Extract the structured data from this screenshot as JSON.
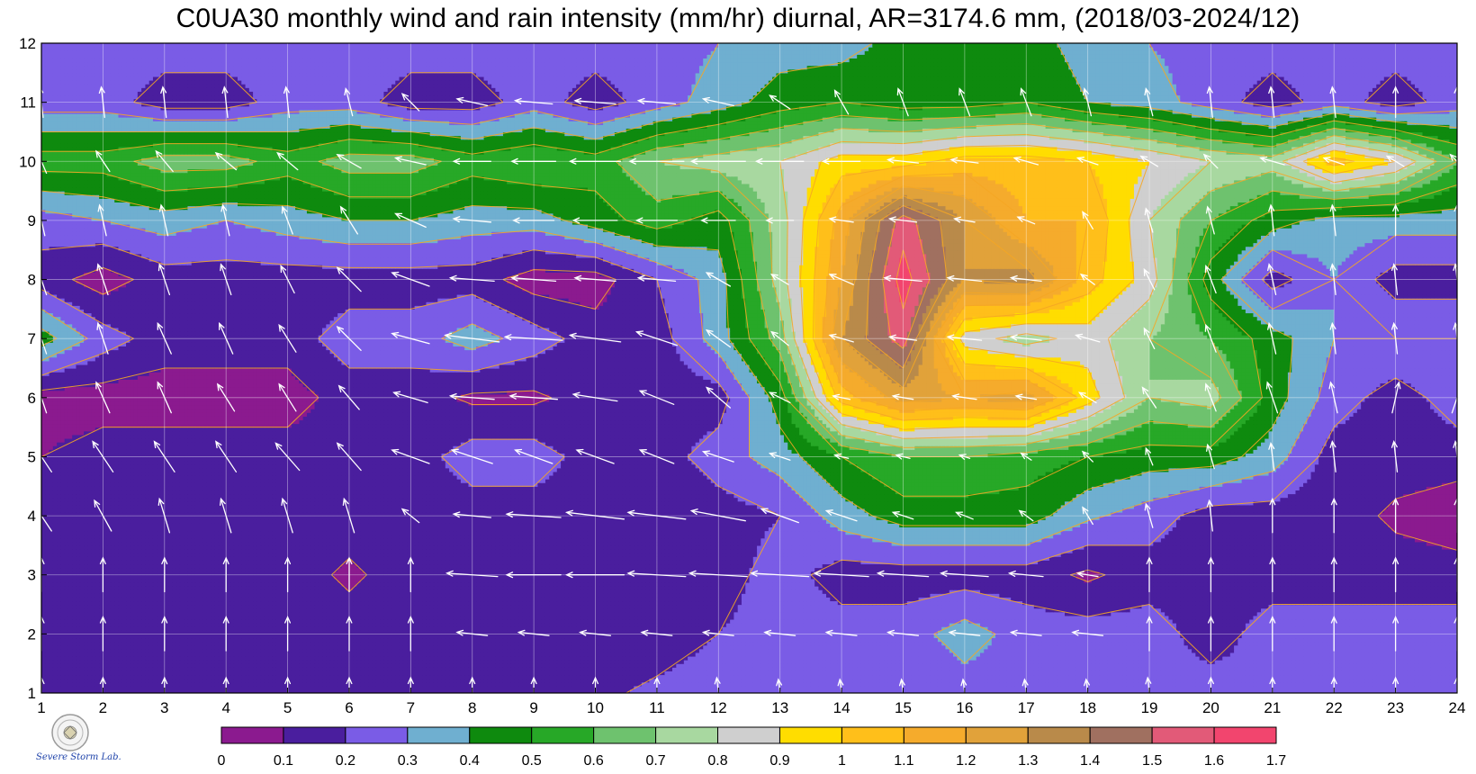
{
  "chart_data": {
    "type": "heatmap",
    "title": "C0UA30 monthly wind and rain intensity (mm/hr) diurnal, AR=3174.6 mm, (2018/03-2024/12)",
    "xlabel": "",
    "ylabel": "",
    "xlim": [
      1,
      24
    ],
    "ylim": [
      1,
      12
    ],
    "x_ticks": [
      1,
      2,
      3,
      4,
      5,
      6,
      7,
      8,
      9,
      10,
      11,
      12,
      13,
      14,
      15,
      16,
      17,
      18,
      19,
      20,
      21,
      22,
      23,
      24
    ],
    "y_ticks": [
      1,
      2,
      3,
      4,
      5,
      6,
      7,
      8,
      9,
      10,
      11,
      12
    ],
    "grid": true,
    "hours": [
      1,
      2,
      3,
      4,
      5,
      6,
      7,
      8,
      9,
      10,
      11,
      12,
      13,
      14,
      15,
      16,
      17,
      18,
      19,
      20,
      21,
      22,
      23,
      24
    ],
    "months": [
      1,
      2,
      3,
      4,
      5,
      6,
      7,
      8,
      9,
      10,
      11,
      12
    ],
    "rain_intensity": [
      [
        0.15,
        0.15,
        0.15,
        0.15,
        0.15,
        0.15,
        0.15,
        0.15,
        0.15,
        0.18,
        0.22,
        0.25,
        0.25,
        0.25,
        0.22,
        0.25,
        0.25,
        0.25,
        0.25,
        0.25,
        0.22,
        0.25,
        0.25,
        0.25
      ],
      [
        0.15,
        0.15,
        0.15,
        0.15,
        0.15,
        0.15,
        0.15,
        0.15,
        0.15,
        0.15,
        0.15,
        0.2,
        0.25,
        0.25,
        0.25,
        0.35,
        0.25,
        0.25,
        0.25,
        0.15,
        0.25,
        0.25,
        0.25,
        0.25
      ],
      [
        0.12,
        0.15,
        0.15,
        0.15,
        0.15,
        0.08,
        0.15,
        0.15,
        0.15,
        0.15,
        0.15,
        0.15,
        0.25,
        0.15,
        0.15,
        0.15,
        0.15,
        0.08,
        0.15,
        0.15,
        0.15,
        0.15,
        0.15,
        0.15
      ],
      [
        0.15,
        0.15,
        0.15,
        0.15,
        0.15,
        0.15,
        0.15,
        0.15,
        0.15,
        0.15,
        0.12,
        0.15,
        0.2,
        0.35,
        0.45,
        0.45,
        0.45,
        0.32,
        0.25,
        0.15,
        0.15,
        0.15,
        0.08,
        0.03
      ],
      [
        0.1,
        0.15,
        0.15,
        0.15,
        0.15,
        0.15,
        0.15,
        0.25,
        0.25,
        0.15,
        0.15,
        0.25,
        0.35,
        0.5,
        0.6,
        0.6,
        0.55,
        0.5,
        0.45,
        0.45,
        0.35,
        0.15,
        0.15,
        0.15
      ],
      [
        0.05,
        0.05,
        0.05,
        0.05,
        0.05,
        0.15,
        0.15,
        0.08,
        0.08,
        0.15,
        0.15,
        0.15,
        0.45,
        1.05,
        1.25,
        1.2,
        1.25,
        0.95,
        0.7,
        0.75,
        0.45,
        0.25,
        0.15,
        0.25
      ],
      [
        0.45,
        0.25,
        0.15,
        0.15,
        0.15,
        0.25,
        0.25,
        0.35,
        0.25,
        0.15,
        0.15,
        0.35,
        0.65,
        1.3,
        1.55,
        0.85,
        0.75,
        0.85,
        0.7,
        0.6,
        0.45,
        0.3,
        0.3,
        0.3
      ],
      [
        0.15,
        0.05,
        0.15,
        0.15,
        0.15,
        0.15,
        0.15,
        0.15,
        0.05,
        0.05,
        0.2,
        0.35,
        0.75,
        1.2,
        1.65,
        1.3,
        1.35,
        1.05,
        0.85,
        0.45,
        0.15,
        0.3,
        0.15,
        0.15
      ],
      [
        0.25,
        0.3,
        0.35,
        0.3,
        0.35,
        0.4,
        0.4,
        0.35,
        0.35,
        0.45,
        0.55,
        0.45,
        0.75,
        1.15,
        1.55,
        1.3,
        1.1,
        1.1,
        0.8,
        0.6,
        0.45,
        0.35,
        0.35,
        0.35
      ],
      [
        0.55,
        0.55,
        0.65,
        0.65,
        0.55,
        0.65,
        0.65,
        0.55,
        0.6,
        0.55,
        0.7,
        0.75,
        0.8,
        0.95,
        0.95,
        1.05,
        1.05,
        1.0,
        0.9,
        0.8,
        0.75,
        1.05,
        0.9,
        0.6
      ],
      [
        0.25,
        0.25,
        0.15,
        0.15,
        0.25,
        0.25,
        0.15,
        0.15,
        0.25,
        0.15,
        0.25,
        0.35,
        0.45,
        0.5,
        0.45,
        0.45,
        0.5,
        0.4,
        0.35,
        0.25,
        0.15,
        0.25,
        0.15,
        0.25
      ],
      [
        0.25,
        0.25,
        0.25,
        0.25,
        0.25,
        0.25,
        0.25,
        0.25,
        0.25,
        0.25,
        0.25,
        0.3,
        0.35,
        0.35,
        0.45,
        0.5,
        0.45,
        0.35,
        0.3,
        0.25,
        0.25,
        0.25,
        0.25,
        0.25
      ]
    ],
    "wind": {
      "u": [
        [
          0,
          0,
          0,
          0,
          0,
          0,
          0,
          0,
          0,
          0,
          0,
          -0.05,
          -0.05,
          -0.05,
          -0.05,
          -0.05,
          -0.05,
          -0.05,
          -0.05,
          0,
          0,
          0,
          0,
          0
        ],
        [
          0,
          0,
          0,
          0,
          0,
          0,
          0,
          -0.45,
          -0.45,
          -0.45,
          -0.45,
          -0.45,
          -0.45,
          -0.45,
          -0.45,
          -0.45,
          -0.45,
          -0.45,
          0,
          0,
          0,
          0,
          0,
          0
        ],
        [
          0,
          0,
          0,
          0,
          0,
          0,
          0,
          -0.75,
          -0.8,
          -0.85,
          -0.85,
          -0.85,
          -0.85,
          -0.8,
          -0.75,
          -0.7,
          -0.5,
          -0.3,
          0,
          0,
          0,
          0,
          0,
          0
        ],
        [
          -0.3,
          -0.25,
          -0.15,
          -0.15,
          -0.15,
          -0.15,
          -0.25,
          -0.55,
          -0.8,
          -0.85,
          -0.85,
          -0.8,
          -0.55,
          -0.45,
          -0.3,
          -0.25,
          -0.2,
          -0.15,
          -0.1,
          -0.05,
          0,
          0,
          0,
          0
        ],
        [
          -0.3,
          -0.3,
          -0.3,
          -0.3,
          -0.35,
          -0.35,
          -0.55,
          -0.6,
          -0.55,
          -0.55,
          -0.5,
          -0.45,
          -0.3,
          -0.2,
          -0.2,
          -0.15,
          -0.15,
          -0.15,
          -0.1,
          -0.1,
          -0.05,
          -0.05,
          -0.05,
          -0.05
        ],
        [
          -0.15,
          -0.2,
          -0.2,
          -0.25,
          -0.25,
          -0.3,
          -0.5,
          -0.65,
          -0.7,
          -0.65,
          -0.5,
          -0.35,
          -0.3,
          -0.25,
          -0.3,
          -0.35,
          -0.3,
          -0.25,
          -0.2,
          -0.15,
          -0.15,
          -0.1,
          0.1,
          0.15
        ],
        [
          -0.15,
          -0.15,
          -0.2,
          -0.2,
          -0.25,
          -0.35,
          -0.55,
          -0.8,
          -0.85,
          -0.75,
          -0.6,
          -0.35,
          -0.25,
          -0.35,
          -0.4,
          -0.5,
          -0.45,
          -0.35,
          -0.15,
          -0.15,
          -0.1,
          -0.05,
          -0.05,
          -0.05
        ],
        [
          -0.15,
          -0.15,
          -0.15,
          -0.15,
          -0.2,
          -0.35,
          -0.55,
          -0.65,
          -0.65,
          -0.6,
          -0.55,
          -0.35,
          -0.25,
          -0.35,
          -0.55,
          -0.5,
          -0.45,
          -0.2,
          -0.15,
          -0.15,
          -0.1,
          -0.05,
          -0.05,
          -0.05
        ],
        [
          -0.1,
          -0.1,
          -0.1,
          -0.1,
          -0.15,
          -0.25,
          -0.45,
          -0.55,
          -0.6,
          -0.65,
          -0.6,
          -0.5,
          -0.4,
          -0.35,
          -0.4,
          -0.3,
          -0.25,
          -0.15,
          -0.1,
          -0.1,
          -0.05,
          -0.05,
          0,
          0
        ],
        [
          -0.15,
          -0.2,
          -0.25,
          -0.3,
          -0.3,
          -0.35,
          -0.45,
          -0.55,
          -0.65,
          -0.75,
          -0.8,
          -0.8,
          -0.7,
          -0.55,
          -0.45,
          -0.4,
          -0.35,
          -0.3,
          -0.25,
          -0.2,
          -0.35,
          -0.3,
          -0.25,
          -0.2
        ],
        [
          -0.05,
          -0.05,
          -0.05,
          -0.05,
          -0.05,
          -0.1,
          -0.25,
          -0.45,
          -0.55,
          -0.6,
          -0.55,
          -0.45,
          -0.3,
          -0.2,
          -0.15,
          -0.15,
          -0.15,
          -0.1,
          -0.1,
          -0.05,
          -0.05,
          -0.05,
          0,
          0
        ],
        [
          0,
          0,
          0,
          0,
          0,
          0,
          0,
          0,
          0,
          0,
          0,
          0,
          0,
          0,
          0,
          0,
          0,
          0,
          0,
          0,
          0,
          0,
          0,
          0
        ]
      ],
      "v": [
        [
          0.45,
          0.45,
          0.45,
          0.45,
          0.45,
          0.45,
          0.45,
          0.45,
          0.45,
          0.45,
          0.45,
          0.45,
          0.4,
          0.4,
          0.4,
          0.4,
          0.4,
          0.4,
          0.45,
          0.45,
          0.45,
          0.45,
          0.45,
          0.45
        ],
        [
          0.5,
          0.5,
          0.5,
          0.5,
          0.5,
          0.5,
          0.5,
          0.05,
          0.05,
          0.05,
          0.05,
          0.05,
          0.05,
          0.05,
          0.05,
          0.05,
          0.05,
          0.05,
          0.5,
          0.5,
          0.5,
          0.5,
          0.5,
          0.5
        ],
        [
          0.5,
          0.5,
          0.5,
          0.5,
          0.5,
          0.5,
          0.5,
          0.05,
          0.0,
          0.0,
          0.05,
          0.05,
          0.05,
          0.05,
          0.05,
          0.05,
          0.05,
          0.05,
          0.5,
          0.5,
          0.5,
          0.5,
          0.5,
          0.5
        ],
        [
          0.45,
          0.45,
          0.5,
          0.5,
          0.5,
          0.5,
          0.2,
          0.05,
          0.05,
          0.1,
          0.1,
          0.15,
          0.2,
          0.15,
          0.1,
          0.1,
          0.15,
          0.25,
          0.35,
          0.45,
          0.5,
          0.5,
          0.5,
          0.5
        ],
        [
          0.45,
          0.45,
          0.45,
          0.45,
          0.4,
          0.4,
          0.2,
          0.2,
          0.2,
          0.2,
          0.2,
          0.15,
          0.1,
          0.05,
          0.05,
          0.05,
          0.1,
          0.15,
          0.25,
          0.35,
          0.4,
          0.45,
          0.45,
          0.45
        ],
        [
          0.45,
          0.45,
          0.45,
          0.4,
          0.4,
          0.35,
          0.15,
          0.05,
          0.05,
          0.1,
          0.2,
          0.3,
          0.15,
          0.05,
          0.05,
          0.05,
          0.05,
          0.15,
          0.3,
          0.4,
          0.45,
          0.45,
          0.45,
          0.45
        ],
        [
          0.45,
          0.45,
          0.45,
          0.45,
          0.4,
          0.35,
          0.15,
          0.1,
          0.05,
          0.1,
          0.2,
          0.25,
          0.2,
          0.1,
          0.05,
          0.05,
          0.05,
          0.1,
          0.3,
          0.4,
          0.45,
          0.45,
          0.45,
          0.45
        ],
        [
          0.45,
          0.45,
          0.45,
          0.45,
          0.4,
          0.35,
          0.2,
          0.05,
          0.05,
          0.05,
          0.05,
          0.2,
          0.15,
          0.15,
          0.05,
          0.05,
          0.05,
          0.15,
          0.3,
          0.4,
          0.45,
          0.45,
          0.45,
          0.45
        ],
        [
          0.45,
          0.45,
          0.45,
          0.45,
          0.4,
          0.4,
          0.2,
          0.05,
          0.0,
          0.0,
          0.0,
          0.0,
          0.0,
          0.05,
          0.05,
          0.05,
          0.1,
          0.25,
          0.35,
          0.4,
          0.45,
          0.45,
          0.45,
          0.45
        ],
        [
          0.35,
          0.3,
          0.3,
          0.25,
          0.25,
          0.2,
          0.1,
          0.0,
          0.0,
          0.0,
          0.0,
          0.0,
          0.0,
          0.0,
          0.05,
          0.05,
          0.1,
          0.1,
          0.15,
          0.2,
          0.1,
          0.1,
          0.15,
          0.2
        ],
        [
          0.45,
          0.45,
          0.45,
          0.45,
          0.45,
          0.4,
          0.25,
          0.1,
          0.05,
          0.05,
          0.05,
          0.1,
          0.2,
          0.35,
          0.4,
          0.4,
          0.4,
          0.4,
          0.4,
          0.45,
          0.45,
          0.45,
          0.45,
          0.45
        ],
        [
          0,
          0,
          0,
          0,
          0,
          0,
          0,
          0,
          0,
          0,
          0,
          0,
          0,
          0,
          0,
          0,
          0,
          0,
          0,
          0,
          0,
          0,
          0,
          0
        ]
      ]
    },
    "colorbar": {
      "levels": [
        0,
        0.1,
        0.2,
        0.3,
        0.4,
        0.5,
        0.6,
        0.7,
        0.8,
        0.9,
        1,
        1.1,
        1.2,
        1.3,
        1.4,
        1.5,
        1.6,
        1.7
      ],
      "labels": [
        "0",
        "0.1",
        "0.2",
        "0.3",
        "0.4",
        "0.5",
        "0.6",
        "0.7",
        "0.8",
        "0.9",
        "1",
        "1.1",
        "1.2",
        "1.3",
        "1.4",
        "1.5",
        "1.6",
        "1.7"
      ],
      "colors": [
        "#8b1a8f",
        "#4a1e9e",
        "#7a5ce6",
        "#6fafd0",
        "#0e8a0e",
        "#27a827",
        "#6ec26e",
        "#a8d8a0",
        "#cfcfcf",
        "#ffdd00",
        "#ffbf1a",
        "#f5ab2c",
        "#e1a23a",
        "#b98a4a",
        "#a07060",
        "#e25a78",
        "#f2456e",
        "#d8223a"
      ]
    },
    "contour_line_color": "#f5a623",
    "vector_color": "#ffffff",
    "logo_text": "Severe Storm Lab."
  }
}
